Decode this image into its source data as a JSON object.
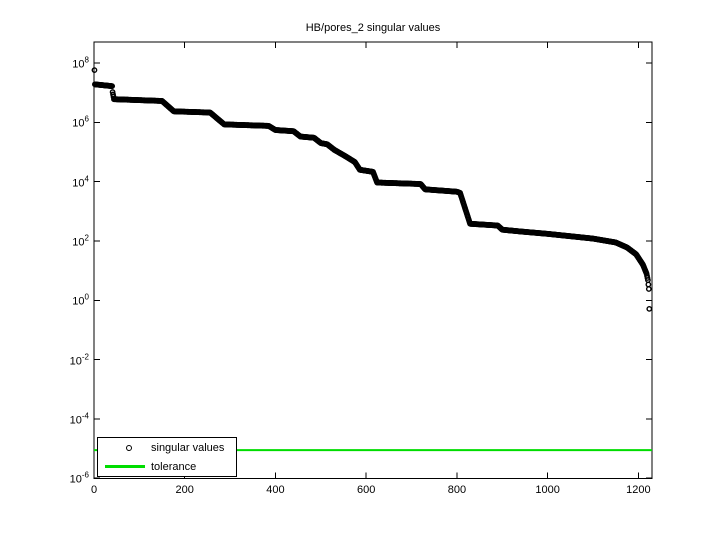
{
  "title": "HB/pores_2 singular values",
  "legend": {
    "entries": [
      {
        "label": "singular values",
        "marker": "circle",
        "color": "#000000"
      },
      {
        "label": "tolerance",
        "marker": "line",
        "color": "#00dd00"
      }
    ]
  },
  "axes": {
    "x": {
      "ticks": [
        0,
        200,
        400,
        600,
        800,
        1000,
        1200
      ],
      "range": [
        0,
        1230
      ]
    },
    "y": {
      "base": "10",
      "scale": "log",
      "tick_exponents": [
        8,
        6,
        4,
        2,
        0,
        -2,
        -4,
        -6
      ]
    }
  },
  "colors": {
    "marker_black": "#000000",
    "tolerance_green": "#00dd00",
    "axis": "#000000",
    "background": "#ffffff"
  },
  "chart_data": {
    "type": "scatter",
    "title": "HB/pores_2 singular values",
    "xlabel": "",
    "ylabel": "",
    "yscale": "log",
    "xlim": [
      0,
      1230
    ],
    "ylim_log10": [
      -6,
      8.7
    ],
    "grid": false,
    "legend_position": "bottom-left",
    "n_points": 1224,
    "series": [
      {
        "name": "singular values",
        "marker": "o",
        "color": "#000000",
        "log10_anchors": [
          [
            1,
            7.76
          ],
          [
            2,
            7.28
          ],
          [
            40,
            7.22
          ],
          [
            41,
            7.02
          ],
          [
            44,
            6.78
          ],
          [
            150,
            6.72
          ],
          [
            176,
            6.37
          ],
          [
            256,
            6.33
          ],
          [
            287,
            5.93
          ],
          [
            385,
            5.88
          ],
          [
            400,
            5.74
          ],
          [
            440,
            5.7
          ],
          [
            455,
            5.52
          ],
          [
            485,
            5.48
          ],
          [
            500,
            5.3
          ],
          [
            514,
            5.26
          ],
          [
            530,
            5.07
          ],
          [
            555,
            4.85
          ],
          [
            575,
            4.66
          ],
          [
            586,
            4.4
          ],
          [
            615,
            4.33
          ],
          [
            624,
            3.97
          ],
          [
            720,
            3.92
          ],
          [
            730,
            3.74
          ],
          [
            800,
            3.66
          ],
          [
            807,
            3.62
          ],
          [
            829,
            2.58
          ],
          [
            890,
            2.52
          ],
          [
            900,
            2.38
          ],
          [
            940,
            2.32
          ],
          [
            1000,
            2.24
          ],
          [
            1100,
            2.08
          ],
          [
            1150,
            1.95
          ],
          [
            1175,
            1.78
          ],
          [
            1195,
            1.55
          ],
          [
            1210,
            1.2
          ],
          [
            1218,
            0.9
          ],
          [
            1221,
            0.68
          ],
          [
            1223,
            0.38
          ],
          [
            1224,
            -0.29
          ]
        ]
      },
      {
        "name": "tolerance",
        "type": "hline",
        "color": "#00dd00",
        "value_log10": -5.05,
        "value_approx": 9e-06
      }
    ]
  }
}
